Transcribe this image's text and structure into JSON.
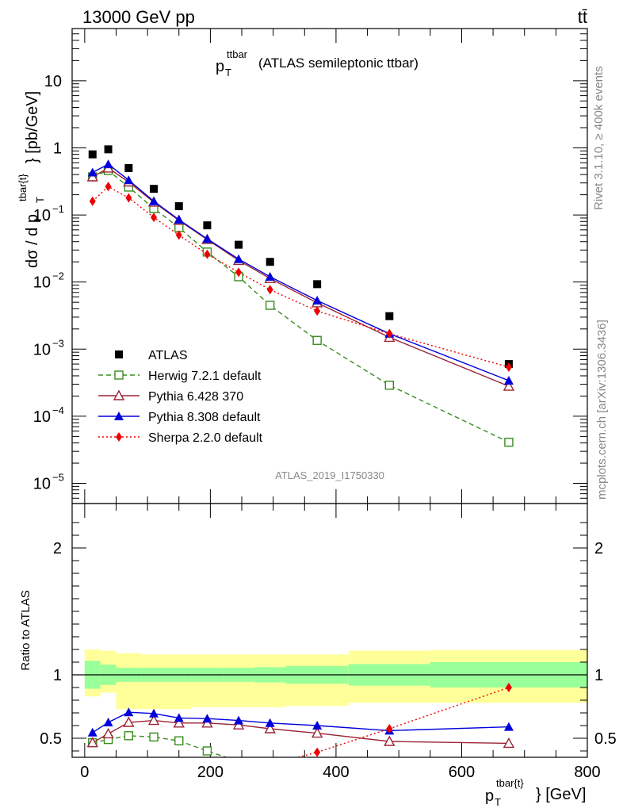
{
  "header": {
    "left": "13000 GeV pp",
    "right": "tt̄"
  },
  "side_labels": {
    "rivet": "Rivet 3.1.10, ≥ 400k events",
    "mcplots": "mcplots.cern.ch [arXiv:1306.3436]"
  },
  "analysis_id": "ATLAS_2019_I1750330",
  "title": {
    "main": "p",
    "sub": "T",
    "sup": "ttbar",
    "rest": "(ATLAS semileptonic ttbar)"
  },
  "axis_labels": {
    "ylabel_top": "dσ / d p_T^{tbar{t}} [pb/GeV]",
    "ylabel_top_parts": {
      "a": "dσ / d p",
      "sub": "T",
      "sup": "tbar{t}",
      "b": "} [pb/GeV]"
    },
    "ylabel_bottom": "Ratio to ATLAS",
    "xlabel_parts": {
      "a": "p",
      "sub": "T",
      "sup": "tbar{t}",
      "b": "} [GeV]"
    }
  },
  "chart_data": [
    {
      "type": "scatter",
      "panel": "main",
      "yscale": "log",
      "ylim": [
        5e-06,
        60
      ],
      "xlim": [
        -20,
        800
      ],
      "y_ticks": [
        {
          "value": 1e-05,
          "label": "10",
          "exp": "−5"
        },
        {
          "value": 0.0001,
          "label": "10",
          "exp": "−4"
        },
        {
          "value": 0.001,
          "label": "10",
          "exp": "−3"
        },
        {
          "value": 0.01,
          "label": "10",
          "exp": "−2"
        },
        {
          "value": 0.1,
          "label": "10",
          "exp": "−1"
        },
        {
          "value": 1,
          "label": "1",
          "exp": ""
        },
        {
          "value": 10,
          "label": "10",
          "exp": ""
        }
      ],
      "legend_position": "bottom-left",
      "series": [
        {
          "name": "ATLAS",
          "color": "#000000",
          "marker": "square-filled",
          "line": "none",
          "x": [
            12.5,
            37.5,
            70,
            110,
            150,
            195,
            245,
            295,
            370,
            485,
            675
          ],
          "y": [
            0.8,
            0.95,
            0.5,
            0.245,
            0.135,
            0.07,
            0.036,
            0.02,
            0.0093,
            0.0031,
            0.0006
          ]
        },
        {
          "name": "Herwig 7.2.1 default",
          "color": "#3a8c1e",
          "marker": "square-open",
          "line": "dashed",
          "x": [
            12.5,
            37.5,
            70,
            110,
            150,
            195,
            245,
            295,
            370,
            485,
            675
          ],
          "y": [
            0.37,
            0.46,
            0.26,
            0.125,
            0.065,
            0.028,
            0.012,
            0.0045,
            0.00135,
            0.00029,
            4.1e-05
          ]
        },
        {
          "name": "Pythia 6.428 370",
          "color": "#9b2335",
          "marker": "triangle-open",
          "line": "solid",
          "x": [
            12.5,
            37.5,
            70,
            110,
            150,
            195,
            245,
            295,
            370,
            485,
            675
          ],
          "y": [
            0.37,
            0.5,
            0.31,
            0.155,
            0.083,
            0.043,
            0.021,
            0.0113,
            0.0049,
            0.0015,
            0.00028
          ]
        },
        {
          "name": "Pythia 8.308 default",
          "color": "#0000dd",
          "marker": "triangle-filled",
          "line": "solid",
          "x": [
            12.5,
            37.5,
            70,
            110,
            150,
            195,
            245,
            295,
            370,
            485,
            675
          ],
          "y": [
            0.43,
            0.57,
            0.33,
            0.16,
            0.085,
            0.044,
            0.022,
            0.012,
            0.0053,
            0.0017,
            0.00034
          ]
        },
        {
          "name": "Sherpa 2.2.0 default",
          "color": "#ee0000",
          "marker": "diamond-filled",
          "line": "dotted",
          "x": [
            12.5,
            37.5,
            70,
            110,
            150,
            195,
            245,
            295,
            370,
            485,
            675
          ],
          "y": [
            0.16,
            0.265,
            0.18,
            0.092,
            0.05,
            0.026,
            0.014,
            0.0077,
            0.0037,
            0.0017,
            0.00054
          ]
        }
      ]
    },
    {
      "type": "scatter",
      "panel": "ratio",
      "yscale": "linear",
      "ylim": [
        0.35,
        2.35
      ],
      "xlim": [
        -20,
        800
      ],
      "y_ticks": [
        0.5,
        1,
        2
      ],
      "x_ticks": [
        0,
        200,
        400,
        600,
        800
      ],
      "reference_line": 1,
      "bands": {
        "bin_edges": [
          0,
          25,
          50,
          90,
          130,
          170,
          220,
          270,
          320,
          420,
          550,
          800
        ],
        "green_low": [
          0.89,
          0.92,
          0.945,
          0.945,
          0.945,
          0.945,
          0.945,
          0.94,
          0.93,
          0.915,
          0.9
        ],
        "green_high": [
          1.11,
          1.08,
          1.055,
          1.055,
          1.055,
          1.055,
          1.055,
          1.06,
          1.07,
          1.085,
          1.1
        ],
        "yellow_low": [
          0.83,
          0.86,
          0.73,
          0.73,
          0.73,
          0.745,
          0.745,
          0.745,
          0.755,
          0.78,
          0.78
        ],
        "yellow_high": [
          1.2,
          1.19,
          1.17,
          1.16,
          1.16,
          1.16,
          1.16,
          1.16,
          1.16,
          1.19,
          1.195
        ]
      },
      "series": [
        {
          "name": "Herwig 7.2.1 default",
          "color": "#3a8c1e",
          "marker": "square-open",
          "line": "dashed",
          "x": [
            12.5,
            37.5,
            70,
            110,
            150,
            195,
            225
          ],
          "y": [
            0.465,
            0.49,
            0.52,
            0.51,
            0.48,
            0.4,
            0.35
          ]
        },
        {
          "name": "Pythia 6.428 370",
          "color": "#9b2335",
          "marker": "triangle-open",
          "line": "solid",
          "x": [
            12.5,
            37.5,
            70,
            110,
            150,
            195,
            245,
            295,
            370,
            485,
            675
          ],
          "y": [
            0.465,
            0.535,
            0.625,
            0.64,
            0.62,
            0.62,
            0.605,
            0.575,
            0.54,
            0.475,
            0.46
          ]
        },
        {
          "name": "Pythia 8.308 default",
          "color": "#0000dd",
          "marker": "triangle-filled",
          "line": "solid",
          "x": [
            12.5,
            37.5,
            70,
            110,
            150,
            195,
            245,
            295,
            370,
            485,
            675
          ],
          "y": [
            0.545,
            0.625,
            0.705,
            0.695,
            0.66,
            0.655,
            0.64,
            0.62,
            0.6,
            0.56,
            0.59
          ]
        },
        {
          "name": "Sherpa 2.2.0 default",
          "color": "#ee0000",
          "marker": "diamond-filled",
          "line": "dotted",
          "x": [
            340,
            370,
            485,
            675
          ],
          "y": [
            0.35,
            0.39,
            0.575,
            0.9
          ]
        }
      ]
    }
  ]
}
